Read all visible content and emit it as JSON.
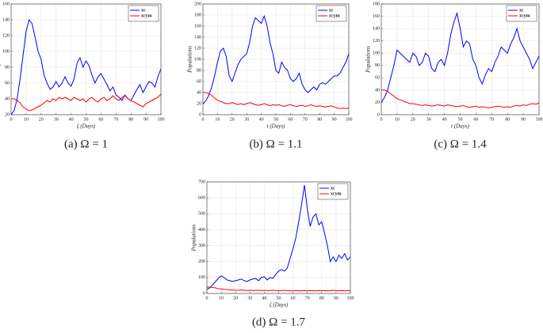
{
  "chart_data": [
    {
      "type": "line",
      "caption": "(a) Ω = 1",
      "xlabel": "ξ (Days)",
      "ylabel": "Population",
      "x": [
        0,
        2,
        4,
        6,
        8,
        10,
        12,
        14,
        16,
        18,
        20,
        22,
        24,
        26,
        28,
        30,
        32,
        34,
        36,
        38,
        40,
        42,
        44,
        46,
        48,
        50,
        52,
        54,
        56,
        58,
        60,
        62,
        64,
        66,
        68,
        70,
        72,
        74,
        76,
        78,
        80,
        82,
        84,
        86,
        88,
        90,
        92,
        94,
        96,
        98,
        100
      ],
      "series": [
        {
          "name": "xc",
          "color": "#0000ff",
          "values": [
            20,
            25,
            40,
            65,
            95,
            125,
            140,
            135,
            118,
            100,
            90,
            70,
            60,
            52,
            55,
            62,
            55,
            60,
            68,
            60,
            56,
            65,
            85,
            92,
            80,
            88,
            82,
            70,
            60,
            68,
            72,
            65,
            58,
            50,
            55,
            45,
            42,
            38,
            45,
            40,
            38,
            45,
            52,
            58,
            48,
            55,
            62,
            60,
            55,
            68,
            78
          ]
        },
        {
          "name": "xcym",
          "color": "#ff0000",
          "values": [
            40,
            40,
            38,
            35,
            30,
            27,
            25,
            26,
            28,
            30,
            32,
            35,
            38,
            36,
            40,
            38,
            42,
            40,
            42,
            40,
            38,
            42,
            40,
            38,
            40,
            36,
            40,
            42,
            38,
            36,
            40,
            42,
            38,
            40,
            44,
            40,
            38,
            42,
            44,
            40,
            38,
            36,
            34,
            32,
            30,
            34,
            36,
            38,
            40,
            42,
            46
          ]
        }
      ],
      "xlim": [
        0,
        100
      ],
      "xticks": [
        0,
        10,
        20,
        30,
        40,
        50,
        60,
        70,
        80,
        90,
        100
      ],
      "ylim": [
        20,
        160
      ],
      "yticks": [
        20,
        40,
        60,
        80,
        100,
        120,
        140,
        160
      ],
      "grid": true
    },
    {
      "type": "line",
      "caption": "(b) Ω = 1.1",
      "xlabel": "t (Days)",
      "ylabel": "Populations",
      "x": [
        0,
        2,
        4,
        6,
        8,
        10,
        12,
        14,
        16,
        18,
        20,
        22,
        24,
        26,
        28,
        30,
        32,
        34,
        36,
        38,
        40,
        42,
        44,
        46,
        48,
        50,
        52,
        54,
        56,
        58,
        60,
        62,
        64,
        66,
        68,
        70,
        72,
        74,
        76,
        78,
        80,
        82,
        84,
        86,
        88,
        90,
        92,
        94,
        96,
        98,
        100
      ],
      "series": [
        {
          "name": "xc",
          "color": "#0000ff",
          "values": [
            20,
            25,
            35,
            50,
            70,
            95,
            115,
            120,
            105,
            70,
            60,
            75,
            90,
            100,
            105,
            110,
            130,
            160,
            175,
            170,
            165,
            178,
            160,
            130,
            110,
            80,
            75,
            95,
            85,
            80,
            65,
            60,
            65,
            75,
            55,
            45,
            40,
            45,
            50,
            45,
            55,
            58,
            55,
            60,
            65,
            70,
            70,
            75,
            85,
            95,
            110
          ]
        },
        {
          "name": "xcym",
          "color": "#ff0000",
          "values": [
            40,
            40,
            38,
            35,
            30,
            26,
            24,
            22,
            20,
            20,
            22,
            20,
            18,
            20,
            18,
            20,
            22,
            20,
            18,
            17,
            18,
            20,
            18,
            16,
            18,
            17,
            18,
            16,
            15,
            17,
            18,
            16,
            15,
            16,
            17,
            15,
            16,
            18,
            16,
            15,
            16,
            15,
            14,
            15,
            16,
            14,
            12,
            11,
            12,
            11,
            12
          ]
        }
      ],
      "xlim": [
        0,
        100
      ],
      "xticks": [
        0,
        10,
        20,
        30,
        40,
        50,
        60,
        70,
        80,
        90,
        100
      ],
      "ylim": [
        0,
        200
      ],
      "yticks": [
        0,
        20,
        40,
        60,
        80,
        100,
        120,
        140,
        160,
        180,
        200
      ],
      "grid": true
    },
    {
      "type": "line",
      "caption": "(c) Ω = 1.4",
      "xlabel": "t (Days)",
      "ylabel": "Populations",
      "x": [
        0,
        2,
        4,
        6,
        8,
        10,
        12,
        14,
        16,
        18,
        20,
        22,
        24,
        26,
        28,
        30,
        32,
        34,
        36,
        38,
        40,
        42,
        44,
        46,
        48,
        50,
        52,
        54,
        56,
        58,
        60,
        62,
        64,
        66,
        68,
        70,
        72,
        74,
        76,
        78,
        80,
        82,
        84,
        86,
        88,
        90,
        92,
        94,
        96,
        98,
        100
      ],
      "series": [
        {
          "name": "xc",
          "color": "#0000ff",
          "values": [
            20,
            28,
            40,
            60,
            80,
            105,
            100,
            95,
            90,
            85,
            100,
            95,
            80,
            85,
            100,
            95,
            75,
            70,
            85,
            90,
            80,
            100,
            130,
            150,
            165,
            140,
            110,
            120,
            115,
            90,
            80,
            60,
            50,
            65,
            75,
            70,
            85,
            95,
            110,
            105,
            100,
            115,
            125,
            140,
            120,
            110,
            100,
            90,
            75,
            85,
            95
          ]
        },
        {
          "name": "xcym",
          "color": "#ff0000",
          "values": [
            40,
            40,
            38,
            34,
            30,
            26,
            24,
            22,
            20,
            18,
            18,
            17,
            16,
            15,
            16,
            15,
            14,
            15,
            16,
            15,
            14,
            16,
            15,
            14,
            13,
            14,
            15,
            13,
            12,
            13,
            14,
            12,
            13,
            12,
            11,
            12,
            13,
            14,
            13,
            12,
            13,
            12,
            14,
            15,
            14,
            16,
            15,
            17,
            18,
            17,
            19
          ]
        }
      ],
      "xlim": [
        0,
        100
      ],
      "xticks": [
        0,
        10,
        20,
        30,
        40,
        50,
        60,
        70,
        80,
        90,
        100
      ],
      "ylim": [
        0,
        180
      ],
      "yticks": [
        0,
        20,
        40,
        60,
        80,
        100,
        120,
        140,
        160,
        180
      ],
      "grid": true
    },
    {
      "type": "line",
      "caption": "(d) Ω = 1.7",
      "xlabel": "ξ (Days)",
      "ylabel": "Populations",
      "x": [
        0,
        2,
        4,
        6,
        8,
        10,
        12,
        14,
        16,
        18,
        20,
        22,
        24,
        26,
        28,
        30,
        32,
        34,
        36,
        38,
        40,
        42,
        44,
        46,
        48,
        50,
        52,
        54,
        56,
        58,
        60,
        62,
        64,
        66,
        68,
        70,
        72,
        74,
        76,
        78,
        80,
        82,
        84,
        86,
        88,
        90,
        92,
        94,
        96,
        98,
        100
      ],
      "series": [
        {
          "name": "xc",
          "color": "#0000ff",
          "values": [
            25,
            35,
            55,
            75,
            95,
            110,
            100,
            85,
            80,
            75,
            80,
            85,
            90,
            80,
            75,
            85,
            90,
            95,
            80,
            100,
            105,
            85,
            100,
            95,
            120,
            140,
            150,
            140,
            160,
            220,
            280,
            350,
            450,
            560,
            680,
            530,
            420,
            480,
            500,
            430,
            450,
            380,
            300,
            200,
            230,
            200,
            240,
            220,
            250,
            210,
            230
          ]
        },
        {
          "name": "xcym",
          "color": "#ff0000",
          "values": [
            40,
            40,
            38,
            35,
            30,
            28,
            26,
            25,
            22,
            22,
            20,
            20,
            22,
            20,
            18,
            20,
            18,
            20,
            20,
            18,
            20,
            18,
            18,
            20,
            18,
            17,
            18,
            20,
            18,
            16,
            17,
            18,
            16,
            17,
            18,
            16,
            18,
            17,
            16,
            18,
            17,
            18,
            16,
            18,
            20,
            18,
            17,
            18,
            16,
            18,
            17
          ]
        }
      ],
      "xlim": [
        0,
        100
      ],
      "xticks": [
        0,
        10,
        20,
        30,
        40,
        50,
        60,
        70,
        80,
        90,
        100
      ],
      "ylim": [
        0,
        700
      ],
      "yticks": [
        0,
        100,
        200,
        300,
        400,
        500,
        600,
        700
      ],
      "grid": true
    }
  ]
}
